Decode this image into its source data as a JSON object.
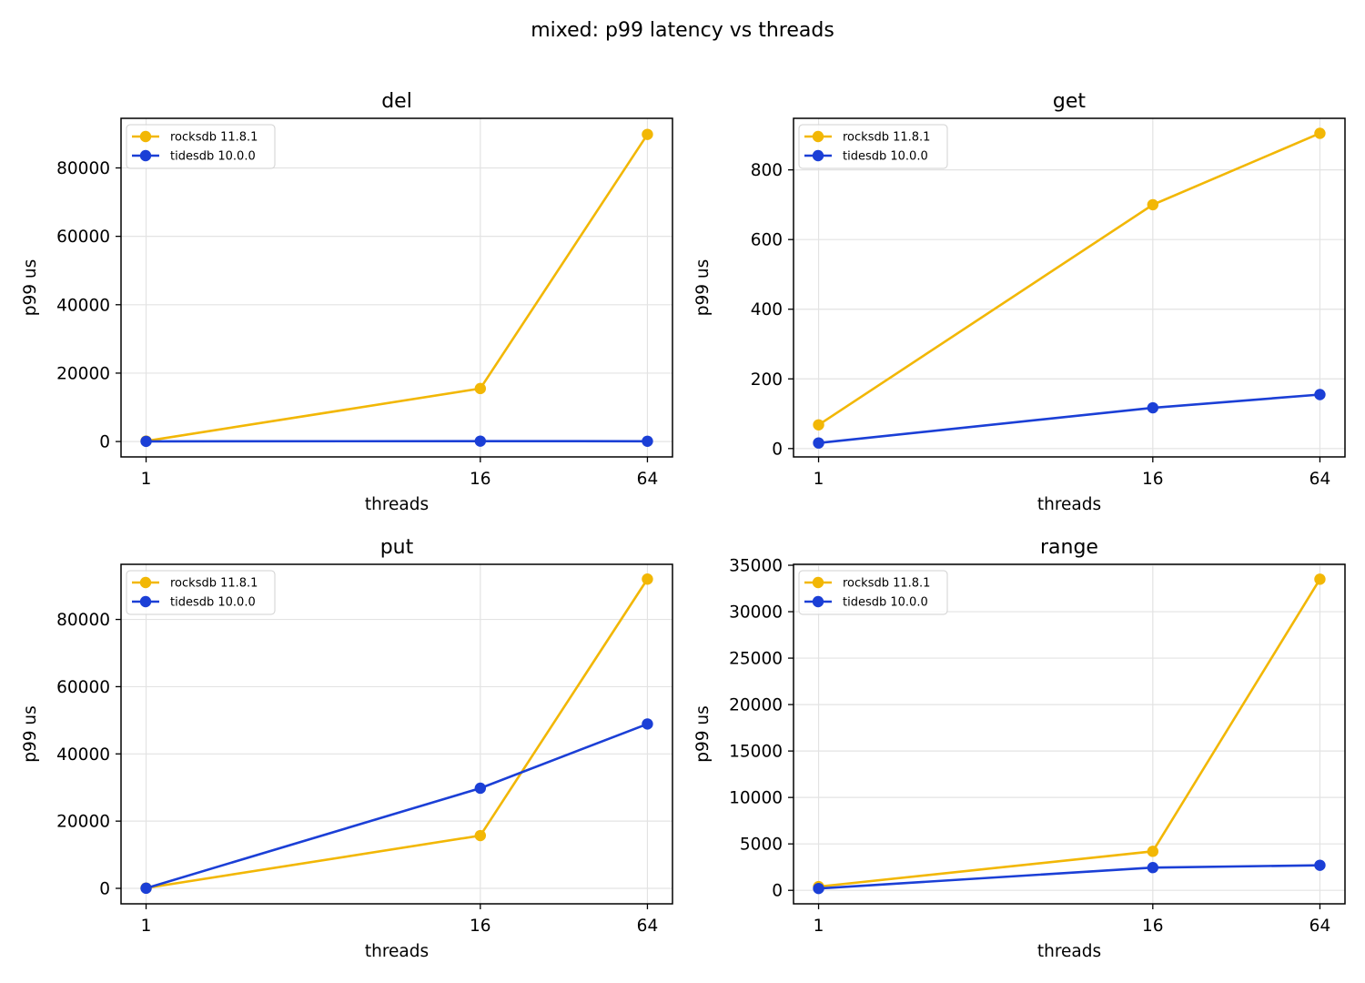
{
  "figure": {
    "title": "mixed: p99 latency vs threads"
  },
  "colors": {
    "rocksdb": "#f2b705",
    "tidesdb": "#1b3fd6"
  },
  "chart_data": [
    {
      "type": "line",
      "title": "del",
      "xlabel": "threads",
      "ylabel": "p99 us",
      "x": [
        1,
        16,
        64
      ],
      "x_tick_labels": [
        "1",
        "16",
        "64"
      ],
      "x_scale": "log2",
      "ylim": [
        -4500,
        94500
      ],
      "y_ticks": [
        0,
        20000,
        40000,
        60000,
        80000
      ],
      "grid": true,
      "legend_position": "upper left",
      "series": [
        {
          "name": "rocksdb 11.8.1",
          "color": "#f2b705",
          "values": [
            150,
            15500,
            89800
          ]
        },
        {
          "name": "tidesdb 10.0.0",
          "color": "#1b3fd6",
          "values": [
            50,
            120,
            80
          ]
        }
      ]
    },
    {
      "type": "line",
      "title": "get",
      "xlabel": "threads",
      "ylabel": "p99 us",
      "x": [
        1,
        16,
        64
      ],
      "x_tick_labels": [
        "1",
        "16",
        "64"
      ],
      "x_scale": "log2",
      "ylim": [
        -24,
        948
      ],
      "y_ticks": [
        0,
        200,
        400,
        600,
        800
      ],
      "grid": true,
      "legend_position": "upper left",
      "series": [
        {
          "name": "rocksdb 11.8.1",
          "color": "#f2b705",
          "values": [
            68,
            700,
            905
          ]
        },
        {
          "name": "tidesdb 10.0.0",
          "color": "#1b3fd6",
          "values": [
            16,
            117,
            155
          ]
        }
      ]
    },
    {
      "type": "line",
      "title": "put",
      "xlabel": "threads",
      "ylabel": "p99 us",
      "x": [
        1,
        16,
        64
      ],
      "x_tick_labels": [
        "1",
        "16",
        "64"
      ],
      "x_scale": "log2",
      "ylim": [
        -4600,
        96400
      ],
      "y_ticks": [
        0,
        20000,
        40000,
        60000,
        80000
      ],
      "grid": true,
      "legend_position": "upper left",
      "series": [
        {
          "name": "rocksdb 11.8.1",
          "color": "#f2b705",
          "values": [
            100,
            15700,
            92000
          ]
        },
        {
          "name": "tidesdb 10.0.0",
          "color": "#1b3fd6",
          "values": [
            50,
            29800,
            48900
          ]
        }
      ]
    },
    {
      "type": "line",
      "title": "range",
      "xlabel": "threads",
      "ylabel": "p99 us",
      "x": [
        1,
        16,
        64
      ],
      "x_tick_labels": [
        "1",
        "16",
        "64"
      ],
      "x_scale": "log2",
      "ylim": [
        -1450,
        35100
      ],
      "y_ticks": [
        0,
        5000,
        10000,
        15000,
        20000,
        25000,
        30000,
        35000
      ],
      "grid": true,
      "legend_position": "upper left",
      "series": [
        {
          "name": "rocksdb 11.8.1",
          "color": "#f2b705",
          "values": [
            400,
            4200,
            33500
          ]
        },
        {
          "name": "tidesdb 10.0.0",
          "color": "#1b3fd6",
          "values": [
            200,
            2450,
            2700
          ]
        }
      ]
    }
  ]
}
